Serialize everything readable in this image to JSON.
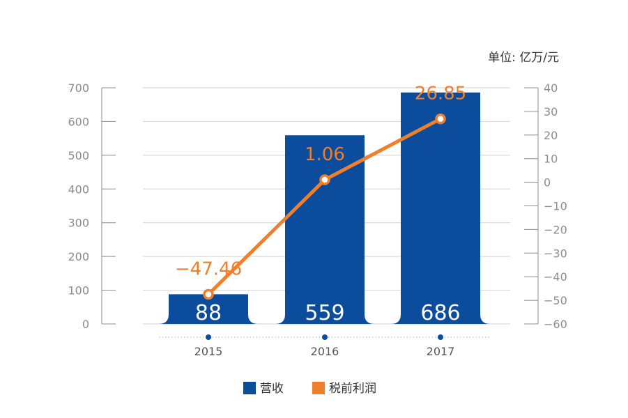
{
  "chart_data": {
    "type": "bar",
    "unit_label": "单位: 亿万/元",
    "categories": [
      "2015",
      "2016",
      "2017"
    ],
    "series": [
      {
        "name": "营收",
        "type": "bar",
        "axis": "left",
        "values": [
          88,
          559,
          686
        ],
        "color": "#0b4d9c"
      },
      {
        "name": "税前利润",
        "type": "line",
        "axis": "right",
        "values": [
          -47.46,
          1.06,
          26.85
        ],
        "color": "#f07f2c"
      }
    ],
    "ylim_left": [
      0,
      700
    ],
    "yticks_left": [
      0,
      100,
      200,
      300,
      400,
      500,
      600,
      700
    ],
    "ylim_right": [
      -60,
      40
    ],
    "yticks_right": [
      -60,
      -50,
      -40,
      -30,
      -20,
      -10,
      0,
      10,
      20,
      30,
      40
    ],
    "bar_labels": [
      "88",
      "559",
      "686"
    ],
    "point_labels": [
      "−47.46",
      "1.06",
      "26.85"
    ],
    "right_tick_labels": [
      "−60",
      "−50",
      "−40",
      "−30",
      "−20",
      "−10",
      "0",
      "10",
      "20",
      "30",
      "40"
    ],
    "grid": true,
    "legend_position": "bottom"
  }
}
